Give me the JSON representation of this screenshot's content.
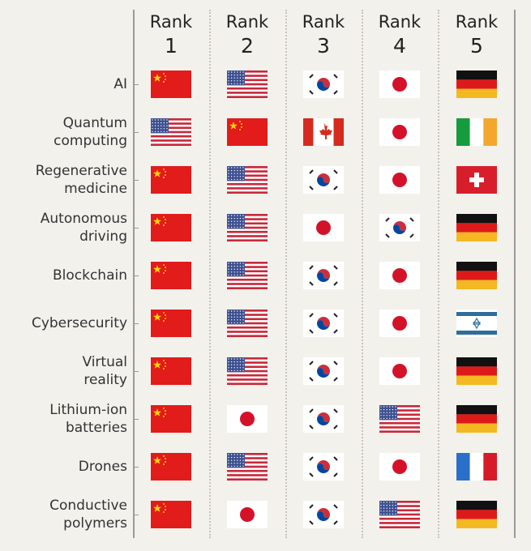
{
  "chart_data": {
    "type": "table",
    "columns": [
      {
        "word": "Rank",
        "number": "1"
      },
      {
        "word": "Rank",
        "number": "2"
      },
      {
        "word": "Rank",
        "number": "3"
      },
      {
        "word": "Rank",
        "number": "4"
      },
      {
        "word": "Rank",
        "number": "5"
      }
    ],
    "rows": [
      {
        "label": [
          "AI"
        ],
        "ranks": [
          "China",
          "United States",
          "South Korea",
          "Japan",
          "Germany"
        ]
      },
      {
        "label": [
          "Quantum",
          "computing"
        ],
        "ranks": [
          "United States",
          "China",
          "Canada",
          "Japan",
          "Ireland"
        ]
      },
      {
        "label": [
          "Regenerative",
          "medicine"
        ],
        "ranks": [
          "China",
          "United States",
          "South Korea",
          "Japan",
          "Switzerland"
        ]
      },
      {
        "label": [
          "Autonomous",
          "driving"
        ],
        "ranks": [
          "China",
          "United States",
          "Japan",
          "South Korea",
          "Germany"
        ]
      },
      {
        "label": [
          "Blockchain"
        ],
        "ranks": [
          "China",
          "United States",
          "South Korea",
          "Japan",
          "Germany"
        ]
      },
      {
        "label": [
          "Cybersecurity"
        ],
        "ranks": [
          "China",
          "United States",
          "South Korea",
          "Japan",
          "Israel"
        ]
      },
      {
        "label": [
          "Virtual",
          "reality"
        ],
        "ranks": [
          "China",
          "United States",
          "South Korea",
          "Japan",
          "Germany"
        ]
      },
      {
        "label": [
          "Lithium-ion",
          "batteries"
        ],
        "ranks": [
          "China",
          "Japan",
          "South Korea",
          "United States",
          "Germany"
        ]
      },
      {
        "label": [
          "Drones"
        ],
        "ranks": [
          "China",
          "United States",
          "South Korea",
          "Japan",
          "France"
        ]
      },
      {
        "label": [
          "Conductive",
          "polymers"
        ],
        "ranks": [
          "China",
          "Japan",
          "South Korea",
          "United States",
          "Germany"
        ]
      }
    ]
  },
  "colors": {
    "background": "#f3f1ec",
    "axis": "#9a9a9a"
  }
}
